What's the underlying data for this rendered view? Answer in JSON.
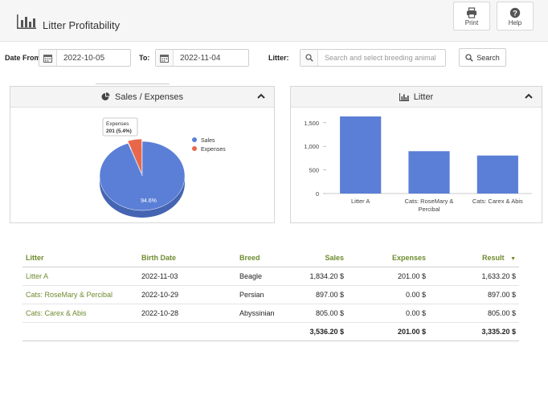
{
  "header": {
    "title": "Litter Profitability",
    "print_label": "Print",
    "help_label": "Help"
  },
  "filters": {
    "date_from_label": "Date From:",
    "date_from_value": "2022-10-05",
    "to_label": "To:",
    "to_value": "2022-11-04",
    "litter_label": "Litter:",
    "litter_placeholder": "Search and select breeding animal",
    "search_label": "Search"
  },
  "panels": {
    "sales_expenses_title": "Sales / Expenses",
    "litter_title": "Litter"
  },
  "colors": {
    "sales": "#5b7fd6",
    "expenses": "#e8674a",
    "bar": "#5b7fd6",
    "link": "#6e8b2f"
  },
  "chart_data": [
    {
      "type": "pie",
      "labels": [
        "Sales",
        "Expenses"
      ],
      "values": [
        3536.2,
        201
      ],
      "data_labels": [
        "94.6%",
        "201 (5.4%)"
      ],
      "tooltip_title": "Expenses",
      "legend_position": "right"
    },
    {
      "type": "bar",
      "categories": [
        "Litter A",
        "Cats: RoseMary & Percibal",
        "Cats: Carex & Abis"
      ],
      "values": [
        1633.2,
        897,
        805
      ],
      "ylim": [
        0,
        1650
      ],
      "yticks": [
        "0",
        "500",
        "1,000",
        "1,500"
      ],
      "ytick_values": [
        0,
        500,
        1000,
        1500
      ],
      "grid": false
    }
  ],
  "table": {
    "columns": [
      "Litter",
      "Birth Date",
      "Breed",
      "Sales",
      "Expenses",
      "Result"
    ],
    "sort_indicator": "▼",
    "rows": [
      {
        "litter": "Litter A",
        "birth_date": "2022-11-03",
        "breed": "Beagle",
        "sales": "1,834.20 $",
        "expenses": "201.00 $",
        "result": "1,633.20 $"
      },
      {
        "litter": "Cats: RoseMary & Percibal",
        "birth_date": "2022-10-29",
        "breed": "Persian",
        "sales": "897.00 $",
        "expenses": "0.00 $",
        "result": "897.00 $"
      },
      {
        "litter": "Cats: Carex & Abis",
        "birth_date": "2022-10-28",
        "breed": "Abyssinian",
        "sales": "805.00 $",
        "expenses": "0.00 $",
        "result": "805.00 $"
      }
    ],
    "totals": {
      "sales": "3,536.20 $",
      "expenses": "201.00 $",
      "result": "3,335.20 $"
    }
  }
}
